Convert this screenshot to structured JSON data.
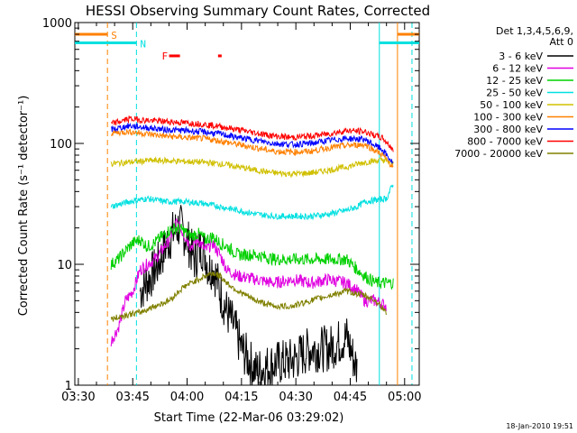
{
  "chart_data": {
    "type": "line",
    "title": "HESSI Observing Summary Count Rates, Corrected",
    "xlabel": "Start Time (22-Mar-06 03:29:02)",
    "ylabel": "Corrected Count Rate (s⁻¹ detector⁻¹)",
    "y_scale": "log",
    "ylim": [
      1,
      1000
    ],
    "xlim_minutes": [
      0,
      95
    ],
    "x_ticks": [
      "03:30",
      "03:45",
      "04:00",
      "04:15",
      "04:30",
      "04:45",
      "05:00"
    ],
    "x_tick_minutes": [
      0.97,
      15.97,
      30.97,
      45.97,
      60.97,
      75.97,
      90.97
    ],
    "y_ticks": [
      1,
      10,
      100,
      1000
    ],
    "y_tick_labels": [
      "1",
      "10",
      "100",
      "1000"
    ],
    "legend_header": [
      "Det 1,3,4,5,6,9,",
      "Att 0"
    ],
    "legend_placement": "right",
    "footer_date": "18-Jan-2010 19:51",
    "markers": {
      "S_label": "S",
      "N_label": "N",
      "F_label": "F",
      "saa_times": [
        9,
        89
      ],
      "night_times": [
        17,
        84
      ],
      "night_bar_ranges": [
        [
          0,
          17
        ],
        [
          84,
          95
        ]
      ],
      "saa_bar_ranges": [
        [
          0,
          9
        ],
        [
          89,
          95
        ]
      ],
      "flare_segments": [
        [
          26,
          29
        ],
        [
          39.5,
          40.5
        ]
      ],
      "bar_levels": {
        "saa": 800,
        "night": 680,
        "flare": 530
      }
    },
    "series": [
      {
        "name": "3 - 6 keV",
        "color": "#000000",
        "x": [
          18,
          21,
          23,
          25,
          27,
          29,
          31,
          33,
          35,
          36,
          37,
          38,
          40,
          42,
          44,
          46,
          50,
          55,
          60,
          65,
          70,
          75,
          78
        ],
        "y": [
          6,
          8,
          10,
          14,
          18,
          21,
          16,
          11,
          14,
          12,
          9,
          10,
          6,
          4,
          3,
          2,
          1.3,
          1.5,
          1.6,
          2,
          2,
          2.5,
          1.3
        ]
      },
      {
        "name": "6 - 12 keV",
        "color": "#e000e0",
        "x": [
          10,
          12,
          14,
          16,
          18,
          20,
          22,
          24,
          26,
          28,
          30,
          32,
          34,
          36,
          38,
          40,
          42,
          45,
          50,
          55,
          60,
          65,
          70,
          75,
          78,
          80,
          83,
          86
        ],
        "y": [
          2.3,
          3,
          5,
          6,
          9,
          10,
          11,
          13,
          16,
          22,
          18,
          14,
          16,
          13,
          15,
          12,
          9,
          8,
          7.5,
          7,
          7.5,
          7,
          7.5,
          7,
          6,
          5,
          5,
          4.5
        ]
      },
      {
        "name": "12 - 25 keV",
        "color": "#00d000",
        "x": [
          10,
          12,
          14,
          16,
          18,
          20,
          22,
          24,
          26,
          28,
          30,
          32,
          34,
          36,
          38,
          40,
          42,
          45,
          50,
          55,
          60,
          65,
          70,
          75,
          78,
          80,
          83,
          86,
          88
        ],
        "y": [
          10,
          11,
          13,
          15,
          16,
          14,
          15,
          17,
          19,
          20,
          19,
          17,
          18,
          16,
          17,
          15,
          14,
          12,
          12,
          11,
          11,
          11,
          11,
          11,
          9,
          8,
          7,
          7,
          7
        ]
      },
      {
        "name": "25 - 50 keV",
        "color": "#00e0e0",
        "x": [
          10,
          15,
          20,
          25,
          30,
          35,
          40,
          45,
          50,
          55,
          60,
          65,
          70,
          75,
          78,
          80,
          83,
          86,
          88
        ],
        "y": [
          30,
          33,
          35,
          33,
          33,
          32,
          30,
          28,
          26,
          25,
          25,
          25,
          26,
          28,
          30,
          33,
          34,
          35,
          48
        ]
      },
      {
        "name": "50 - 100 keV",
        "color": "#d0c000",
        "x": [
          10,
          15,
          20,
          25,
          30,
          35,
          40,
          45,
          50,
          55,
          60,
          65,
          70,
          75,
          80,
          85,
          88
        ],
        "y": [
          68,
          70,
          72,
          72,
          71,
          70,
          68,
          64,
          60,
          57,
          56,
          57,
          60,
          64,
          70,
          73,
          68
        ]
      },
      {
        "name": "100 - 300 keV",
        "color": "#ff8000",
        "x": [
          10,
          15,
          20,
          25,
          30,
          35,
          40,
          45,
          50,
          55,
          60,
          65,
          70,
          75,
          80,
          85,
          88
        ],
        "y": [
          122,
          125,
          120,
          115,
          112,
          110,
          105,
          98,
          92,
          86,
          85,
          86,
          92,
          96,
          98,
          80,
          62
        ]
      },
      {
        "name": "300 - 800 keV",
        "color": "#0000ff",
        "x": [
          10,
          15,
          20,
          25,
          30,
          35,
          40,
          45,
          50,
          55,
          60,
          65,
          70,
          75,
          80,
          85,
          88
        ],
        "y": [
          130,
          140,
          135,
          130,
          128,
          125,
          120,
          112,
          106,
          100,
          98,
          100,
          106,
          110,
          108,
          88,
          67
        ]
      },
      {
        "name": "800 - 7000 keV",
        "color": "#ff0000",
        "x": [
          10,
          15,
          20,
          25,
          30,
          35,
          40,
          45,
          50,
          55,
          60,
          65,
          70,
          75,
          80,
          85,
          88
        ],
        "y": [
          145,
          160,
          155,
          152,
          148,
          145,
          138,
          130,
          122,
          115,
          112,
          115,
          120,
          128,
          125,
          110,
          88
        ]
      },
      {
        "name": "7000 - 20000 keV",
        "color": "#808000",
        "x": [
          10,
          14,
          18,
          22,
          26,
          30,
          34,
          36,
          38,
          40,
          42,
          45,
          50,
          55,
          60,
          65,
          70,
          75,
          80,
          83,
          86
        ],
        "y": [
          3.5,
          3.8,
          4,
          4.5,
          5,
          6.5,
          7.5,
          8,
          8.5,
          8,
          7,
          6,
          5,
          4.5,
          4.5,
          5,
          5.5,
          6,
          5.5,
          5,
          4
        ]
      }
    ]
  }
}
